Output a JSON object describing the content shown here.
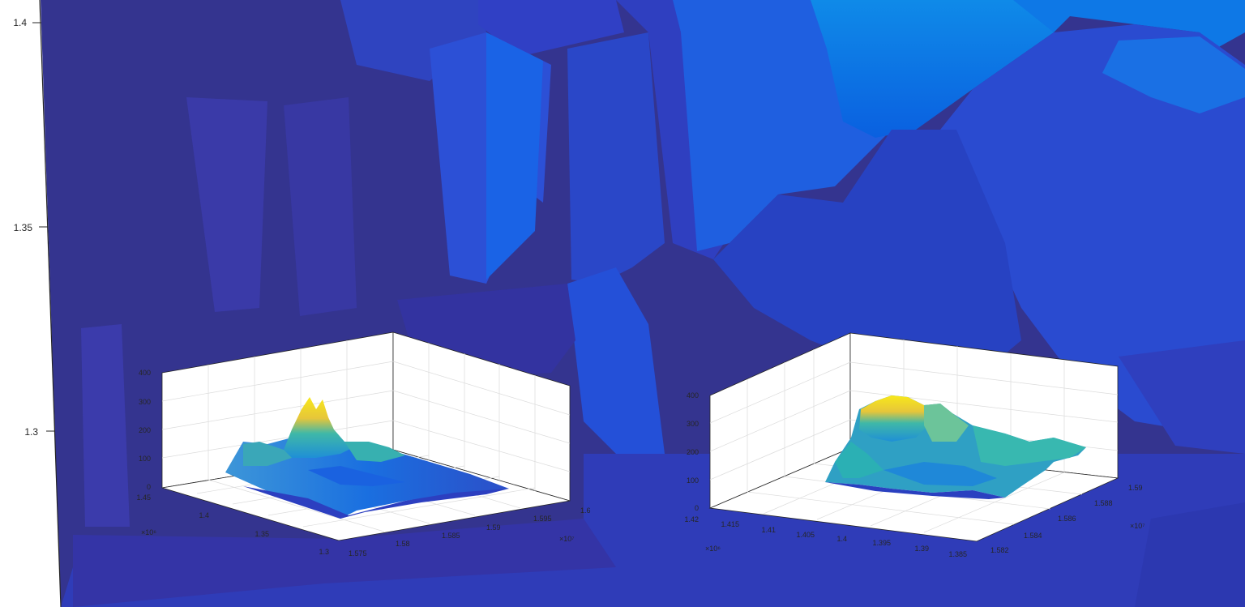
{
  "chart_data": [
    {
      "type": "surface",
      "panel": "background",
      "ylim": [
        1.27,
        1.41
      ],
      "yticks": [
        "1.4",
        "1.35",
        "1.3"
      ],
      "colors": {
        "backdrop": "#34348f",
        "ridge": "#0a6ce6",
        "mid": "#2a4fd0",
        "light": "#1f7be8",
        "panel": "#3a3ab0"
      }
    },
    {
      "type": "surface",
      "panel": "inset-left",
      "z_ticks": [
        "0",
        "100",
        "200",
        "300",
        "400"
      ],
      "zlim": [
        0,
        400
      ],
      "y_ticks": [
        "1.45",
        "1.4",
        "1.35",
        "1.3"
      ],
      "y_exponent": "×10⁶",
      "x_ticks": [
        "1.575",
        "1.58",
        "1.585",
        "1.59",
        "1.595",
        "1.6"
      ],
      "x_exponent": "×10⁷",
      "peak_z": 340
    },
    {
      "type": "surface",
      "panel": "inset-right",
      "z_ticks": [
        "0",
        "100",
        "200",
        "300",
        "400"
      ],
      "zlim": [
        0,
        400
      ],
      "y_ticks": [
        "1.42",
        "1.415",
        "1.41",
        "1.405",
        "1.4",
        "1.395",
        "1.39",
        "1.385"
      ],
      "y_exponent": "×10⁶",
      "x_ticks": [
        "1.582",
        "1.584",
        "1.586",
        "1.588",
        "1.59"
      ],
      "x_exponent": "×10⁷",
      "peak_z": 335
    }
  ]
}
